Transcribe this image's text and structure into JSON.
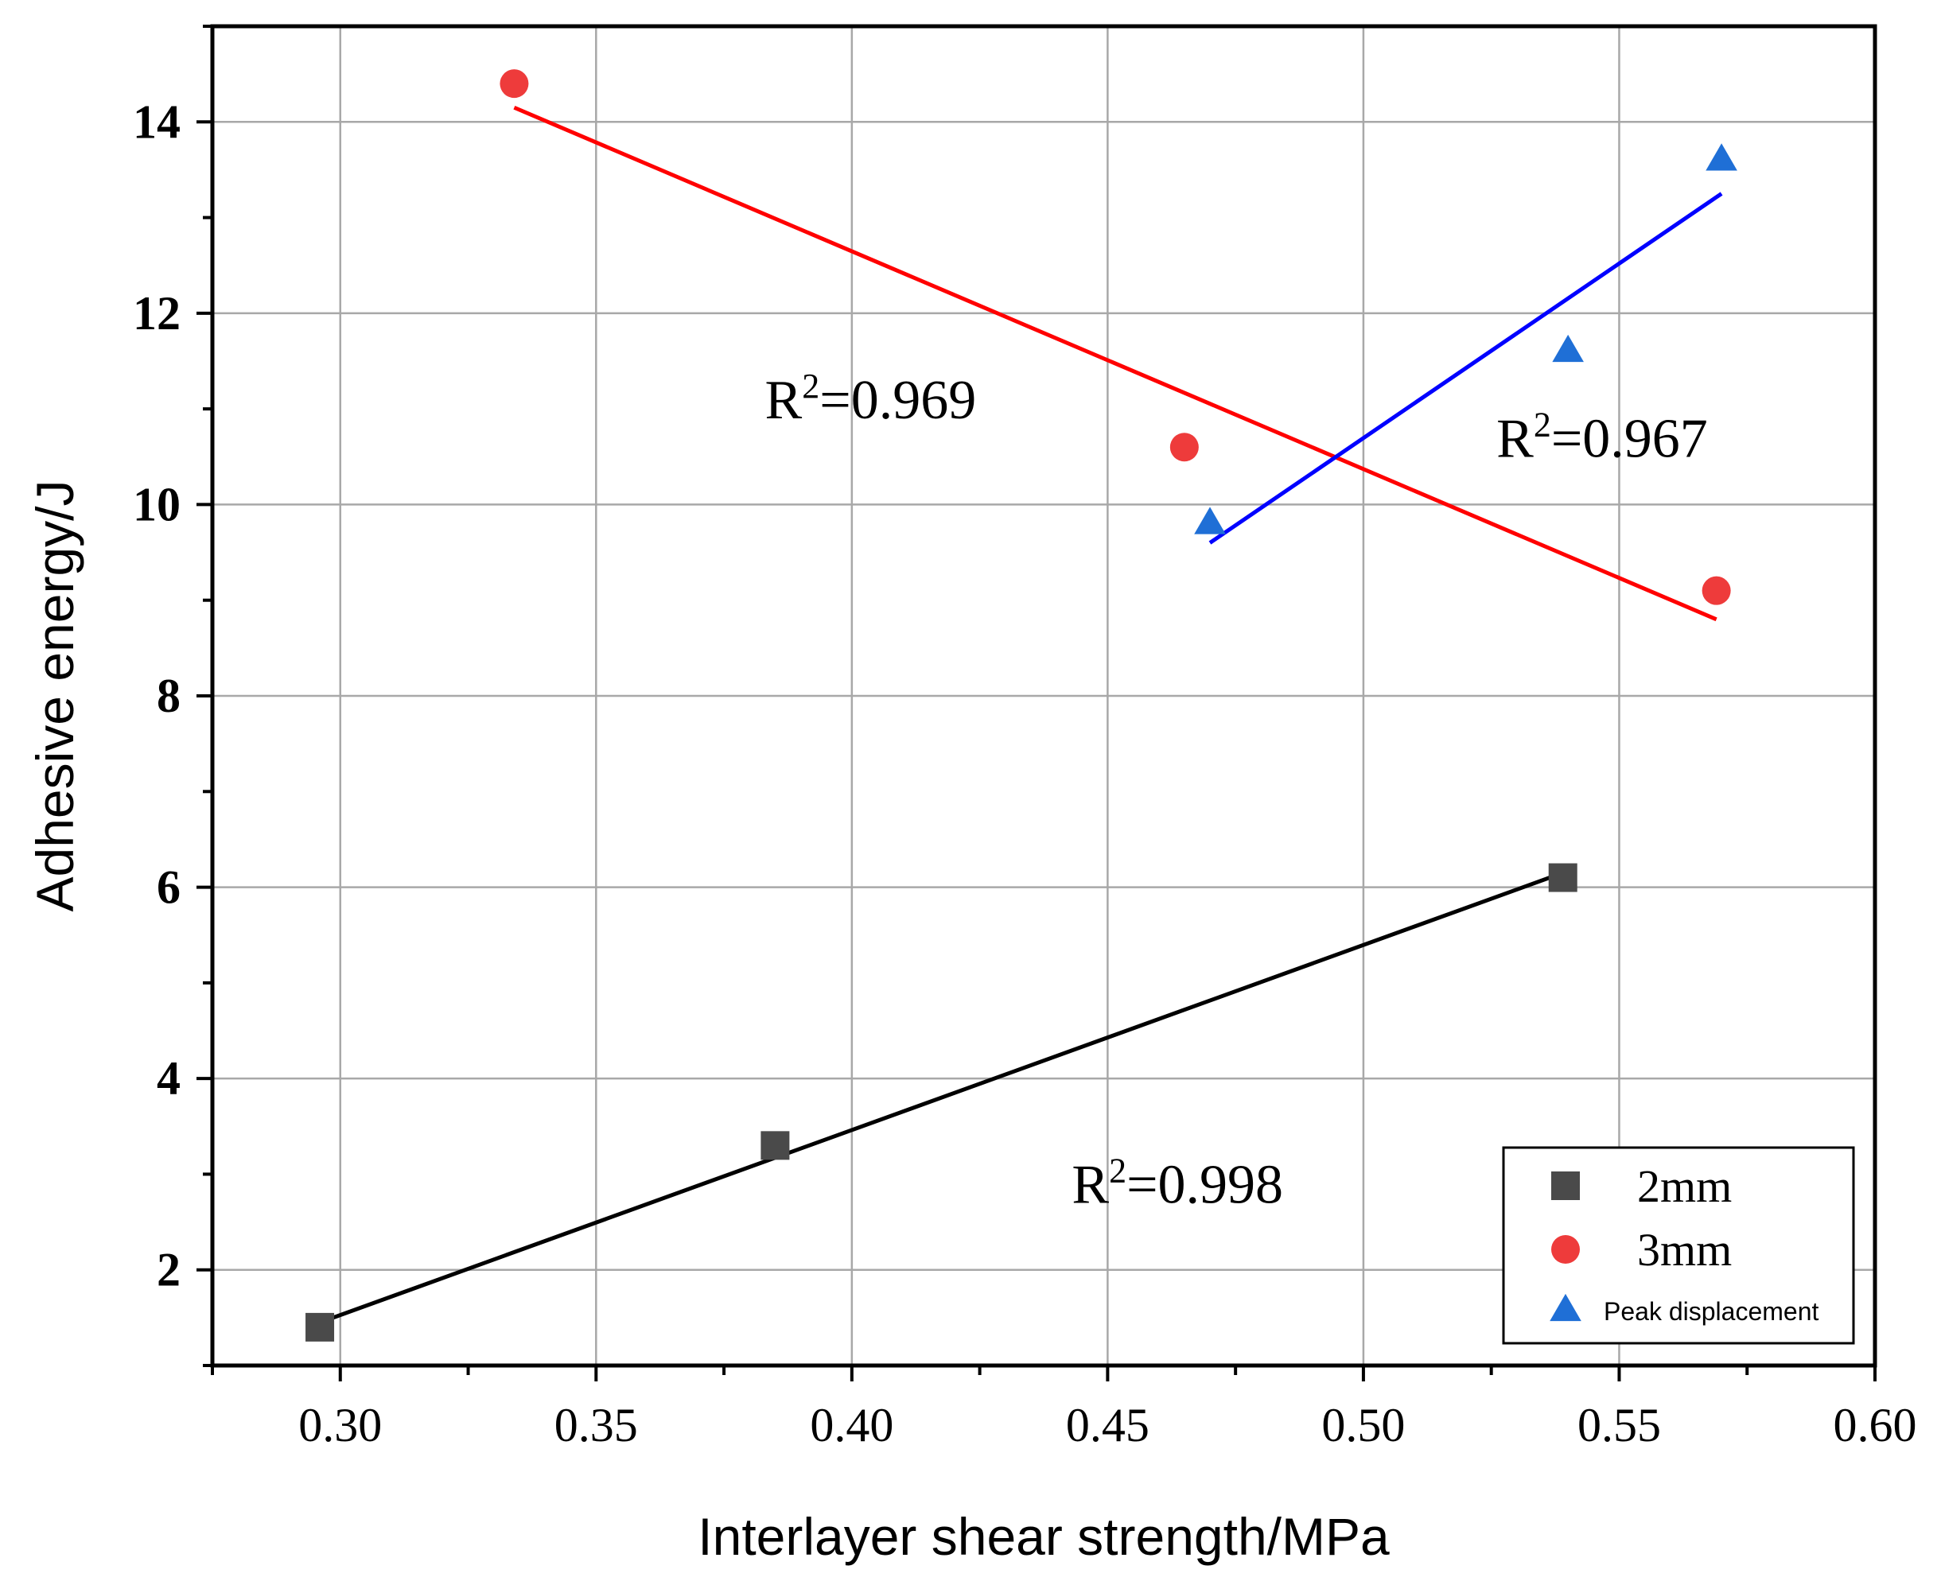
{
  "chart_data": {
    "type": "scatter",
    "xlabel": "Interlayer shear strength/MPa",
    "ylabel": "Adhesive energy/J",
    "xlim": [
      0.275,
      0.6
    ],
    "ylim": [
      1.0,
      15.0
    ],
    "x_ticks": [
      0.3,
      0.35,
      0.4,
      0.45,
      0.5,
      0.55,
      0.6
    ],
    "x_tick_labels": [
      "0.30",
      "0.35",
      "0.40",
      "0.45",
      "0.50",
      "0.55",
      "0.60"
    ],
    "y_ticks": [
      2,
      4,
      6,
      8,
      10,
      12,
      14
    ],
    "y_tick_labels": [
      "2",
      "4",
      "6",
      "8",
      "10",
      "12",
      "14"
    ],
    "grid": true,
    "legend_position": "bottom-right",
    "series": [
      {
        "name": "2mm",
        "marker": "square",
        "color": "#4a4a4a",
        "line_color": "#000000",
        "points": [
          [
            0.296,
            1.4
          ],
          [
            0.385,
            3.3
          ],
          [
            0.539,
            6.1
          ]
        ],
        "fit_line": [
          [
            0.296,
            1.45
          ],
          [
            0.539,
            6.15
          ]
        ],
        "r2_label": {
          "prefix": "R",
          "exp": "2",
          "value": "=0.998",
          "x": 0.443,
          "y": 2.7
        }
      },
      {
        "name": "3mm",
        "marker": "circle",
        "color": "#ee3b3b",
        "line_color": "#ff0000",
        "points": [
          [
            0.334,
            14.4
          ],
          [
            0.465,
            10.6
          ],
          [
            0.569,
            9.1
          ]
        ],
        "fit_line": [
          [
            0.334,
            14.15
          ],
          [
            0.569,
            8.8
          ]
        ],
        "r2_label": {
          "prefix": "R",
          "exp": "2",
          "value": "=0.969",
          "x": 0.383,
          "y": 10.9
        }
      },
      {
        "name": "Peak displacement",
        "marker": "triangle",
        "color": "#1f6fd6",
        "line_color": "#0000ff",
        "points": [
          [
            0.47,
            9.8
          ],
          [
            0.54,
            11.6
          ],
          [
            0.57,
            13.6
          ]
        ],
        "fit_line": [
          [
            0.47,
            9.6
          ],
          [
            0.57,
            13.25
          ]
        ],
        "r2_label": {
          "prefix": "R",
          "exp": "2",
          "value": "=0.967",
          "x": 0.526,
          "y": 10.5
        }
      }
    ]
  }
}
